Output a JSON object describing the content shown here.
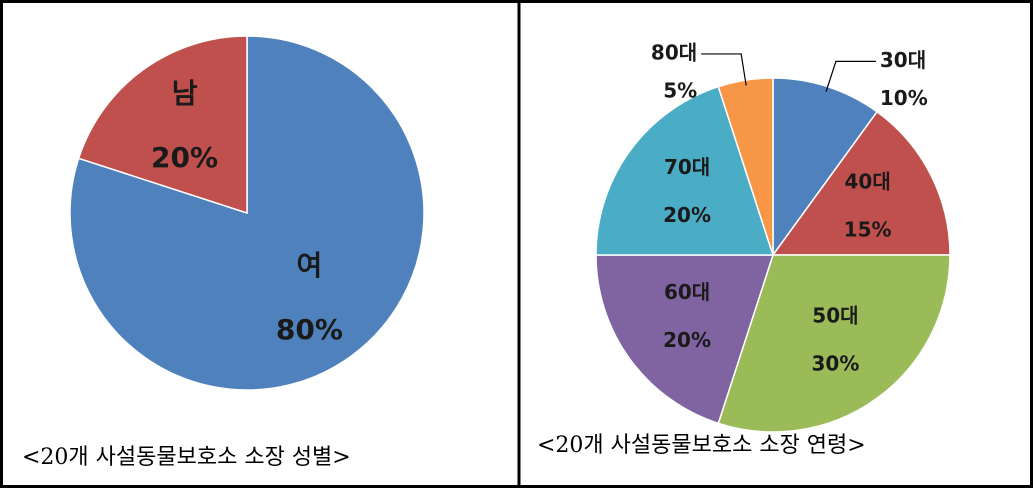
{
  "chart_data": [
    {
      "type": "pie",
      "title": "<20개 사설동물보호소 소장 성별>",
      "categories": [
        "여",
        "남"
      ],
      "values": [
        80,
        20
      ],
      "value_labels": [
        "80%",
        "20%"
      ],
      "colors": [
        "#4f81bd",
        "#c0504d"
      ]
    },
    {
      "type": "pie",
      "title": "<20개 사설동물보호소 소장 연령>",
      "categories": [
        "30대",
        "40대",
        "50대",
        "60대",
        "70대",
        "80대"
      ],
      "values": [
        10,
        15,
        30,
        20,
        20,
        5
      ],
      "value_labels": [
        "10%",
        "15%",
        "30%",
        "20%",
        "20%",
        "5%"
      ],
      "colors": [
        "#4f81bd",
        "#c0504d",
        "#9bbb59",
        "#8064a2",
        "#4bacc6",
        "#f79646"
      ]
    }
  ]
}
